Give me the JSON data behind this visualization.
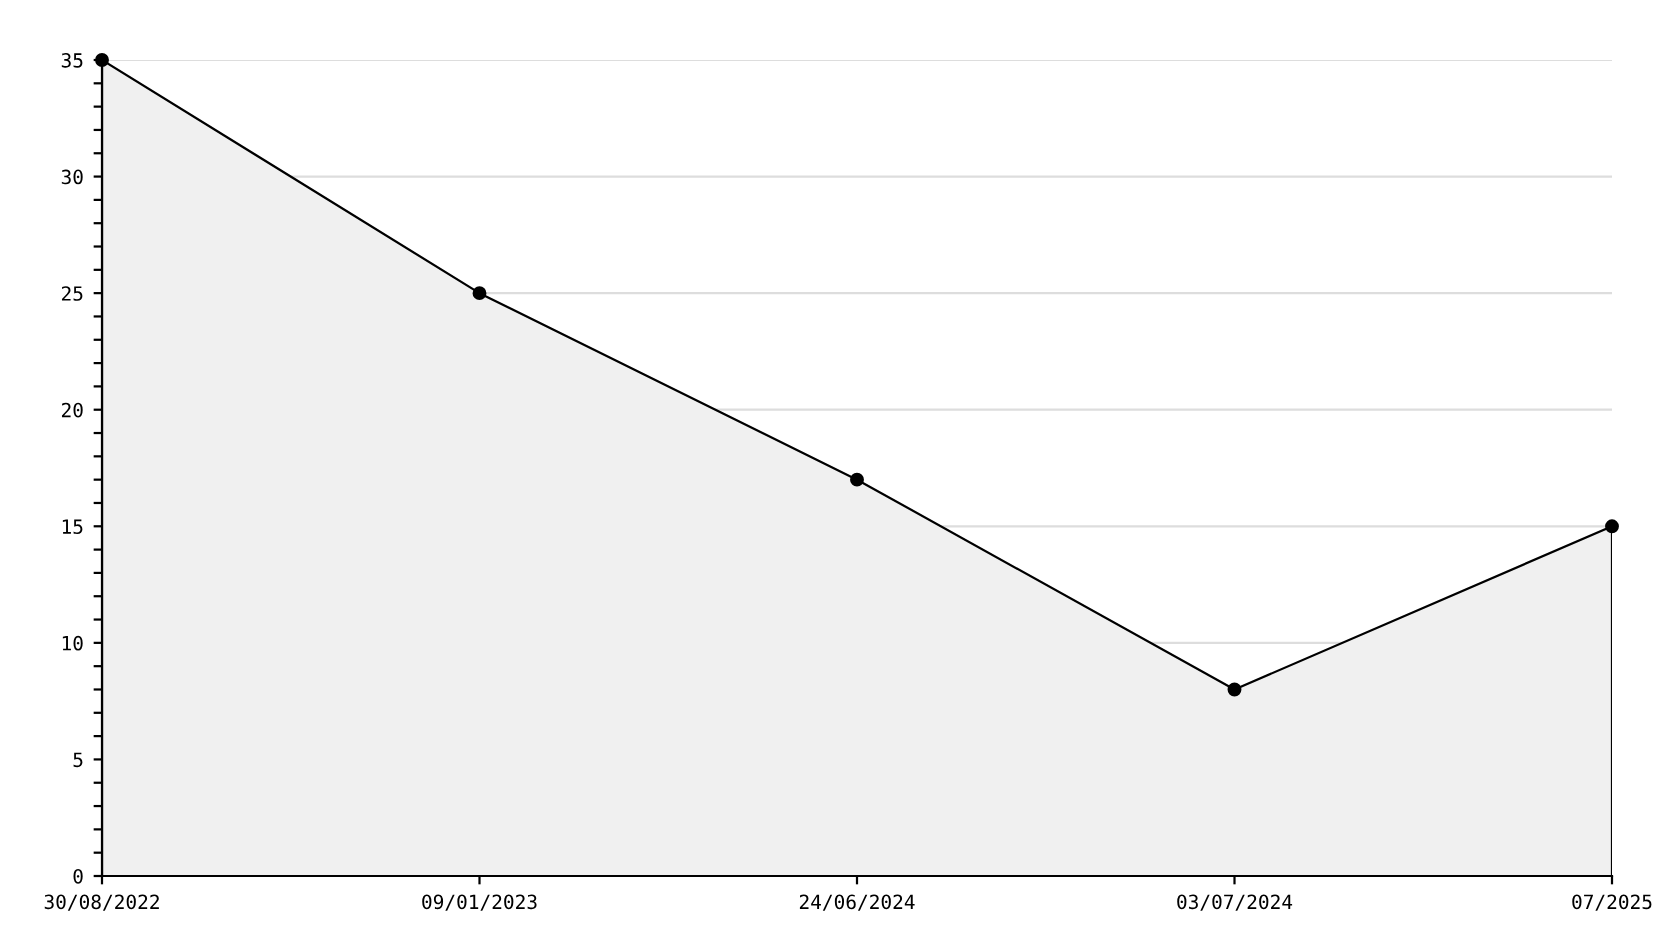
{
  "chart_data": {
    "type": "area",
    "categories": [
      "30/08/2022",
      "09/01/2023",
      "24/06/2024",
      "03/07/2024",
      "07/2025"
    ],
    "series": [
      {
        "color": "#000000",
        "values": [
          35,
          25,
          17,
          8,
          15
        ]
      }
    ],
    "ylim": [
      0,
      35
    ],
    "yticks": [
      0,
      {
        "value": 1,
        "label": null
      },
      {
        "value": 2,
        "label": null
      },
      {
        "value": 3,
        "label": null
      },
      {
        "value": 4,
        "label": null
      },
      5,
      {
        "value": 6,
        "label": null
      },
      {
        "value": 7,
        "label": null
      },
      {
        "value": 8,
        "label": null
      },
      {
        "value": 9,
        "label": null
      },
      10,
      {
        "value": 11,
        "label": null
      },
      {
        "value": 12,
        "label": null
      },
      {
        "value": 13,
        "label": null
      },
      {
        "value": 14,
        "label": null
      },
      15,
      {
        "value": 16,
        "label": null
      },
      {
        "value": 17,
        "label": null
      },
      {
        "value": 18,
        "label": null
      },
      {
        "value": 19,
        "label": null
      },
      20,
      {
        "value": 21,
        "label": null
      },
      {
        "value": 22,
        "label": null
      },
      {
        "value": 23,
        "label": null
      },
      {
        "value": 24,
        "label": null
      },
      25,
      {
        "value": 26,
        "label": null
      },
      {
        "value": 27,
        "label": null
      },
      {
        "value": 28,
        "label": null
      },
      {
        "value": 29,
        "label": null
      },
      30,
      {
        "value": 31,
        "label": null
      },
      {
        "value": 32,
        "label": null
      },
      {
        "value": 33,
        "label": null
      },
      {
        "value": 34,
        "label": null
      },
      35
    ],
    "grid": "y",
    "marker": "circle",
    "line_style": "solid",
    "legend": false
  }
}
